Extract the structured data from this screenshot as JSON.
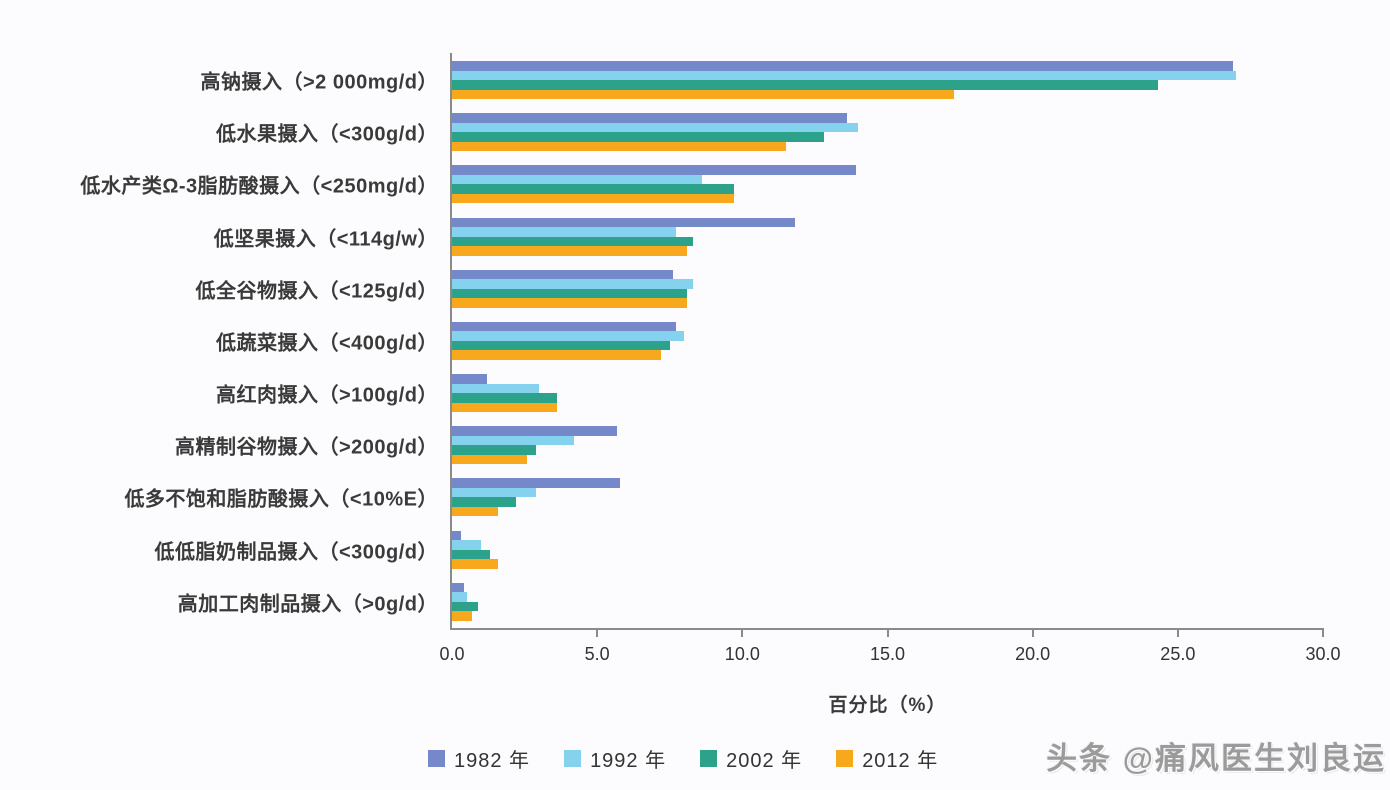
{
  "chart_data": {
    "type": "bar",
    "orientation": "horizontal",
    "title": "",
    "xlabel": "百分比（%）",
    "ylabel": "",
    "xlim": [
      0,
      30
    ],
    "x_ticks": [
      "0.0",
      "5.0",
      "10.0",
      "15.0",
      "20.0",
      "25.0",
      "30.0"
    ],
    "grid": false,
    "legend_position": "bottom",
    "categories": [
      "高钠摄入（>2 000mg/d）",
      "低水果摄入（<300g/d）",
      "低水产类Ω-3脂肪酸摄入（<250mg/d）",
      "低坚果摄入（<114g/w）",
      "低全谷物摄入（<125g/d）",
      "低蔬菜摄入（<400g/d）",
      "高红肉摄入（>100g/d）",
      "高精制谷物摄入（>200g/d）",
      "低多不饱和脂肪酸摄入（<10%E）",
      "低低脂奶制品摄入（<300g/d）",
      "高加工肉制品摄入（>0g/d）"
    ],
    "series": [
      {
        "name": "1982 年",
        "color": "#7589ca",
        "values": [
          26.9,
          13.6,
          13.9,
          11.8,
          7.6,
          7.7,
          1.2,
          5.7,
          5.8,
          0.3,
          0.4
        ]
      },
      {
        "name": "1992 年",
        "color": "#85d2ee",
        "values": [
          27.0,
          14.0,
          8.6,
          7.7,
          8.3,
          8.0,
          3.0,
          4.2,
          2.9,
          1.0,
          0.5
        ]
      },
      {
        "name": "2002 年",
        "color": "#2ca28b",
        "values": [
          24.3,
          12.8,
          9.7,
          8.3,
          8.1,
          7.5,
          3.6,
          2.9,
          2.2,
          1.3,
          0.9
        ]
      },
      {
        "name": "2012 年",
        "color": "#f8a81c",
        "values": [
          17.3,
          11.5,
          9.7,
          8.1,
          8.1,
          7.2,
          3.6,
          2.6,
          1.6,
          1.6,
          0.7
        ]
      }
    ]
  },
  "watermark": "头条 @痛风医生刘良运",
  "colors": {
    "axis": "#8a8a8a",
    "text": "#3a3a3a",
    "background": "#fcfbfd"
  }
}
